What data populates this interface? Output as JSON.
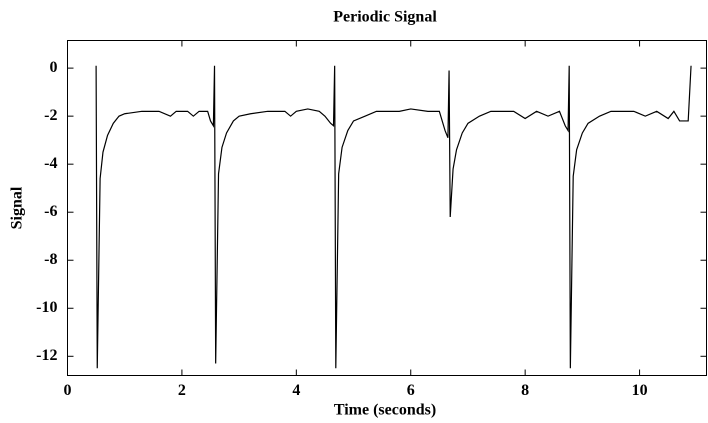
{
  "chart_data": {
    "type": "line",
    "title": "Periodic Signal",
    "xlabel": "Time (seconds)",
    "ylabel": "Signal",
    "x": [
      0.5,
      0.52,
      0.57,
      0.62,
      0.7,
      0.8,
      0.9,
      1.0,
      1.3,
      1.6,
      1.8,
      1.9,
      2.1,
      2.2,
      2.3,
      2.45,
      2.5,
      2.55,
      2.57,
      2.59,
      2.64,
      2.7,
      2.78,
      2.9,
      3.0,
      3.2,
      3.5,
      3.8,
      3.9,
      4.0,
      4.2,
      4.4,
      4.5,
      4.6,
      4.65,
      4.67,
      4.69,
      4.74,
      4.8,
      4.9,
      5.0,
      5.2,
      5.4,
      5.8,
      6.0,
      6.3,
      6.5,
      6.6,
      6.65,
      6.67,
      6.69,
      6.74,
      6.8,
      6.9,
      7.0,
      7.2,
      7.4,
      7.8,
      8.0,
      8.2,
      8.4,
      8.6,
      8.7,
      8.75,
      8.77,
      8.79,
      8.84,
      8.9,
      9.0,
      9.1,
      9.3,
      9.5,
      9.9,
      10.1,
      10.3,
      10.5,
      10.6,
      10.7,
      10.85,
      10.9
    ],
    "y": [
      0.1,
      -12.5,
      -4.6,
      -3.5,
      -2.8,
      -2.3,
      -2.0,
      -1.9,
      -1.8,
      -1.8,
      -2.0,
      -1.8,
      -1.8,
      -2.0,
      -1.8,
      -1.8,
      -2.2,
      -2.4,
      0.1,
      -12.3,
      -4.4,
      -3.3,
      -2.7,
      -2.2,
      -2.0,
      -1.9,
      -1.8,
      -1.8,
      -2.0,
      -1.8,
      -1.7,
      -1.8,
      -2.0,
      -2.3,
      -2.4,
      0.1,
      -12.5,
      -4.4,
      -3.3,
      -2.6,
      -2.2,
      -2.0,
      -1.8,
      -1.8,
      -1.7,
      -1.8,
      -1.8,
      -2.6,
      -2.9,
      -0.1,
      -6.2,
      -4.2,
      -3.4,
      -2.7,
      -2.3,
      -2.0,
      -1.8,
      -1.8,
      -2.1,
      -1.8,
      -2.0,
      -1.8,
      -2.4,
      -2.6,
      0.1,
      -12.5,
      -4.5,
      -3.4,
      -2.7,
      -2.3,
      -2.0,
      -1.8,
      -1.8,
      -2.0,
      -1.8,
      -2.1,
      -1.8,
      -2.2,
      -2.2,
      0.1
    ],
    "color": "#000000",
    "xlim": [
      0,
      11.17
    ],
    "xticks": [
      0,
      2,
      4,
      6,
      8,
      10
    ],
    "ylim": [
      -12.8,
      1.15
    ],
    "yticks": [
      0,
      -2,
      -4,
      -6,
      -8,
      -10,
      -12
    ]
  }
}
